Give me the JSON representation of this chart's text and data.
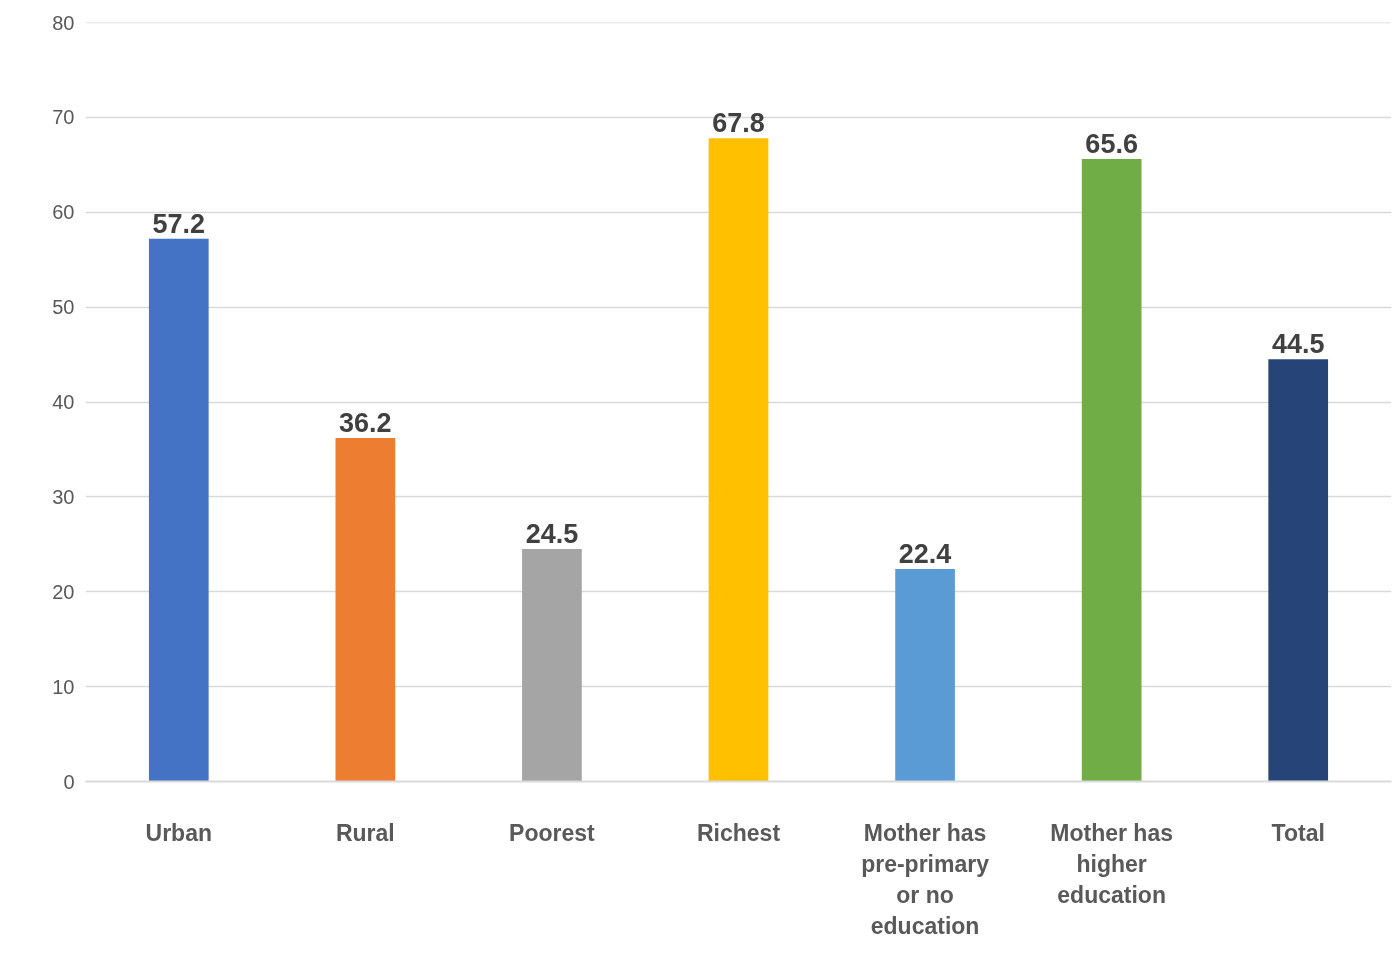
{
  "chart_data": {
    "type": "bar",
    "categories": [
      "Urban",
      "Rural",
      "Poorest",
      "Richest",
      "Mother has pre-primary or no education",
      "Mother has higher education",
      "Total"
    ],
    "values": [
      57.2,
      36.2,
      24.5,
      67.8,
      22.4,
      65.6,
      44.5
    ],
    "colors": [
      "#4472c4",
      "#ed7d31",
      "#a5a5a5",
      "#ffc000",
      "#5b9bd5",
      "#70ad47",
      "#264478"
    ],
    "ylim": [
      0,
      80
    ],
    "yticks": [
      0,
      10,
      20,
      30,
      40,
      50,
      60,
      70,
      80
    ],
    "grid": "y",
    "data_labels": true
  }
}
